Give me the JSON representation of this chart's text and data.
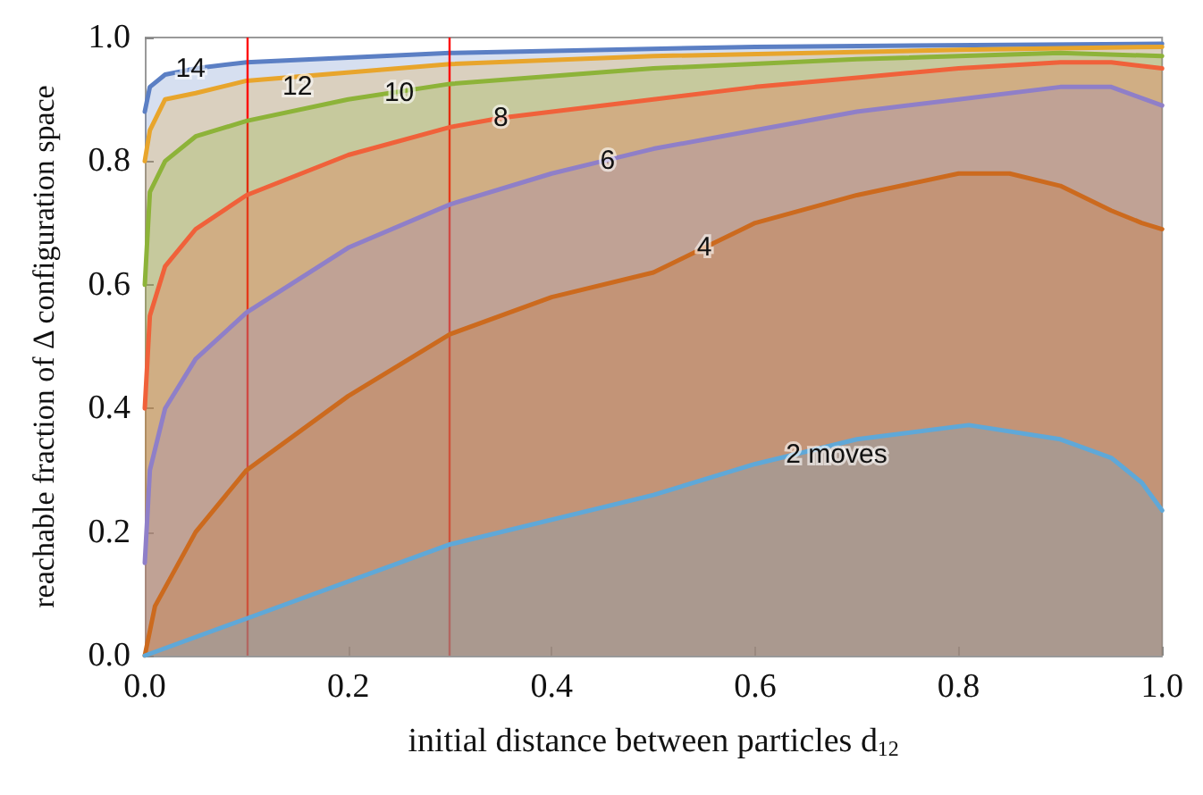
{
  "chart_data": {
    "type": "area",
    "xlabel": "initial distance between particles d$_{12}$",
    "ylabel": "reachable fraction of Δ configuration space",
    "xlim": [
      0,
      1
    ],
    "ylim": [
      0,
      1
    ],
    "xticks": [
      {
        "value": 0,
        "label": "0.0"
      },
      {
        "value": 0.2,
        "label": "0.2"
      },
      {
        "value": 0.4,
        "label": "0.4"
      },
      {
        "value": 0.6,
        "label": "0.6"
      },
      {
        "value": 0.8,
        "label": "0.8"
      },
      {
        "value": 1,
        "label": "1.0"
      }
    ],
    "yticks": [
      {
        "value": 0,
        "label": "0.0"
      },
      {
        "value": 0.2,
        "label": "0.2"
      },
      {
        "value": 0.4,
        "label": "0.4"
      },
      {
        "value": 0.6,
        "label": "0.6"
      },
      {
        "value": 0.8,
        "label": "0.8"
      },
      {
        "value": 1,
        "label": "1.0"
      }
    ],
    "grid": false,
    "marker": "none",
    "line_style": "solid",
    "series": [
      {
        "color": "#5b7fc4",
        "x": [
          0,
          0.005,
          0.02,
          0.05,
          0.1,
          0.3,
          0.6,
          1
        ],
        "values": [
          0.88,
          0.92,
          0.94,
          0.95,
          0.96,
          0.975,
          0.985,
          0.99
        ]
      },
      {
        "color": "#e8a52c",
        "x": [
          0,
          0.005,
          0.02,
          0.05,
          0.1,
          0.3,
          0.5,
          0.8,
          1
        ],
        "values": [
          0.8,
          0.85,
          0.9,
          0.91,
          0.93,
          0.957,
          0.97,
          0.98,
          0.985
        ]
      },
      {
        "color": "#8db339",
        "x": [
          0,
          0.005,
          0.02,
          0.05,
          0.1,
          0.2,
          0.3,
          0.5,
          0.7,
          0.9,
          1
        ],
        "values": [
          0.6,
          0.75,
          0.8,
          0.84,
          0.865,
          0.9,
          0.925,
          0.95,
          0.965,
          0.975,
          0.97
        ]
      },
      {
        "color": "#f0613a",
        "x": [
          0,
          0.005,
          0.02,
          0.05,
          0.1,
          0.2,
          0.3,
          0.35,
          0.5,
          0.6,
          0.7,
          0.8,
          0.9,
          0.95,
          1
        ],
        "values": [
          0.4,
          0.55,
          0.63,
          0.69,
          0.745,
          0.81,
          0.855,
          0.87,
          0.9,
          0.92,
          0.935,
          0.95,
          0.96,
          0.96,
          0.95
        ]
      },
      {
        "color": "#8f7fc8",
        "x": [
          0,
          0.005,
          0.02,
          0.05,
          0.1,
          0.2,
          0.3,
          0.4,
          0.45,
          0.5,
          0.6,
          0.7,
          0.8,
          0.9,
          0.95,
          1
        ],
        "values": [
          0.15,
          0.3,
          0.4,
          0.48,
          0.555,
          0.66,
          0.73,
          0.78,
          0.8,
          0.82,
          0.85,
          0.88,
          0.9,
          0.92,
          0.92,
          0.89
        ]
      },
      {
        "color": "#cc6a1e",
        "x": [
          0,
          0.01,
          0.05,
          0.1,
          0.2,
          0.3,
          0.4,
          0.5,
          0.55,
          0.6,
          0.7,
          0.8,
          0.85,
          0.9,
          0.95,
          0.98,
          1
        ],
        "values": [
          0,
          0.08,
          0.2,
          0.3,
          0.42,
          0.52,
          0.58,
          0.62,
          0.66,
          0.7,
          0.745,
          0.78,
          0.78,
          0.76,
          0.72,
          0.7,
          0.69
        ]
      },
      {
        "color": "#5fa8d8",
        "x": [
          0,
          0.1,
          0.3,
          0.5,
          0.6,
          0.7,
          0.81,
          0.9,
          0.95,
          0.98,
          1
        ],
        "values": [
          0,
          0.06,
          0.18,
          0.26,
          0.31,
          0.35,
          0.373,
          0.35,
          0.32,
          0.28,
          0.235
        ]
      }
    ],
    "ref_lines": [
      {
        "axis": "x",
        "value": 0.1,
        "color": "#ff0000"
      },
      {
        "axis": "x",
        "value": 0.3,
        "color": "#ff0000"
      }
    ],
    "annotations": [
      {
        "text": "14",
        "x": 0.045,
        "y": 0.95
      },
      {
        "text": "12",
        "x": 0.15,
        "y": 0.92
      },
      {
        "text": "10",
        "x": 0.25,
        "y": 0.91
      },
      {
        "text": "8",
        "x": 0.35,
        "y": 0.87
      },
      {
        "text": "6",
        "x": 0.455,
        "y": 0.8
      },
      {
        "text": "4",
        "x": 0.55,
        "y": 0.66
      },
      {
        "text": "2 moves",
        "x": 0.68,
        "y": 0.325
      }
    ]
  }
}
